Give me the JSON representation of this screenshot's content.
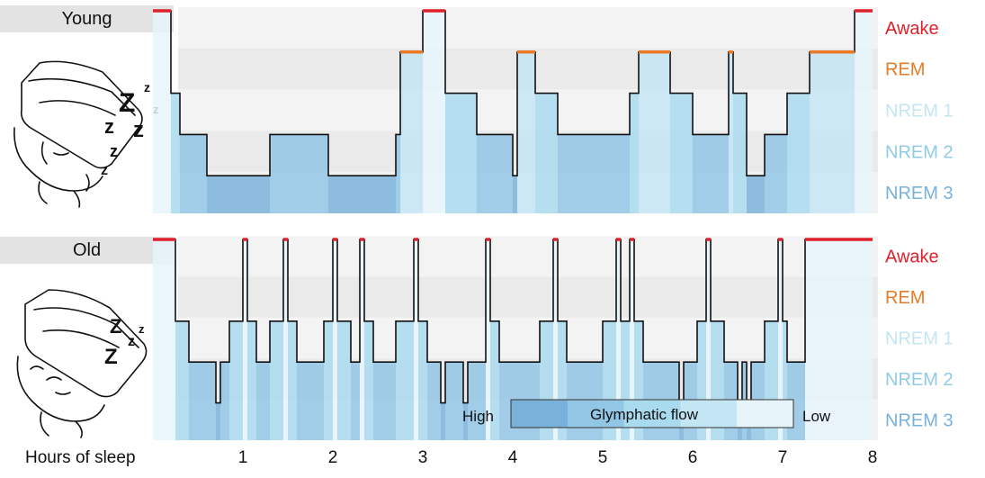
{
  "panels": [
    {
      "label": "Young"
    },
    {
      "label": "Old"
    }
  ],
  "colors": {
    "awake": "#e0202a",
    "rem": "#ea7a25",
    "nrem1": "#c3e6f3",
    "nrem2": "#8fcbe7",
    "nrem3": "#78b2dc",
    "band_light": "#f3f3f3",
    "band_dark": "#eaeaea",
    "fill_awake": "#e6f4fa",
    "fill_rem": "#c4e5f3",
    "fill_nrem1": "#a9daee",
    "fill_nrem2": "#92c6e5",
    "fill_nrem3": "#7ab1da"
  },
  "chart_data": {
    "type": "step",
    "xlabel": "Hours of sleep",
    "x_ticks": [
      1,
      2,
      3,
      4,
      5,
      6,
      7,
      8
    ],
    "xlim": [
      0,
      8
    ],
    "stages": [
      "Awake",
      "REM",
      "NREM 1",
      "NREM 2",
      "NREM 3"
    ],
    "panels": [
      {
        "name": "Young",
        "segments": [
          {
            "x0": 0.0,
            "x1": 0.2,
            "stage": "Awake"
          },
          {
            "x0": 0.2,
            "x1": 2.25,
            "stage": "NREM 3",
            "note": "deep sleep with brief dips to NREM 2 near 0.7 and 1.6"
          },
          {
            "x0": 2.75,
            "x1": 3.0,
            "stage": "REM"
          },
          {
            "x0": 3.0,
            "x1": 3.25,
            "stage": "Awake"
          },
          {
            "x0": 3.6,
            "x1": 4.0,
            "stage": "NREM 2"
          },
          {
            "x0": 4.05,
            "x1": 4.25,
            "stage": "REM"
          },
          {
            "x0": 4.25,
            "x1": 5.3,
            "stage": "NREM 2"
          },
          {
            "x0": 5.4,
            "x1": 5.75,
            "stage": "REM"
          },
          {
            "x0": 6.0,
            "x1": 6.4,
            "stage": "NREM 2"
          },
          {
            "x0": 6.45,
            "x1": 6.6,
            "stage": "REM"
          },
          {
            "x0": 6.6,
            "x1": 6.8,
            "stage": "NREM 2"
          },
          {
            "x0": 7.3,
            "x1": 7.8,
            "stage": "REM"
          },
          {
            "x0": 7.8,
            "x1": 8.0,
            "stage": "Awake"
          }
        ]
      },
      {
        "name": "Old",
        "segments": [
          {
            "x0": 0.0,
            "x1": 0.25,
            "stage": "Awake"
          },
          {
            "x0": 0.25,
            "x1": 7.3,
            "stage": "NREM 1",
            "note": "fragmented sleep with repeated brief awakenings and rare NREM 2"
          },
          {
            "x0": 7.3,
            "x1": 8.0,
            "stage": "Awake"
          }
        ]
      }
    ],
    "legend": {
      "title": "Glymphatic flow",
      "high_label": "High",
      "low_label": "Low"
    }
  }
}
